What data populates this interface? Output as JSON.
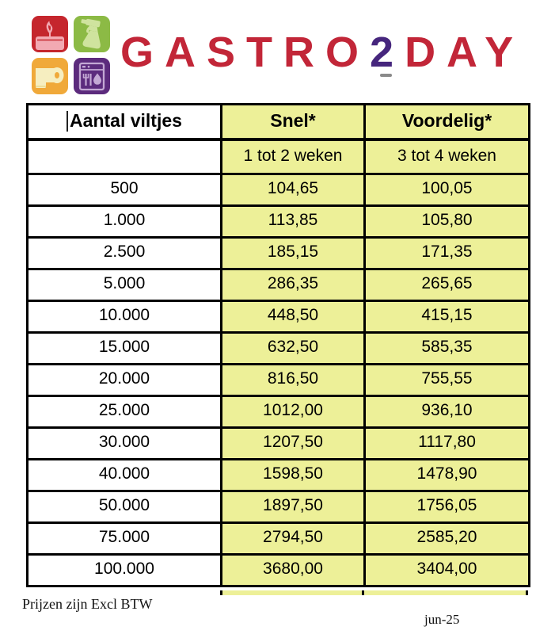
{
  "logo": {
    "brand": {
      "prefix": "GASTRO",
      "digit": "2",
      "suffix": "DAY"
    },
    "text_color": "#c22638",
    "digit_color": "#46267d",
    "tiles": [
      {
        "name": "candle-icon",
        "bg": "#c5262d",
        "fg": "#f2a9b2"
      },
      {
        "name": "spray-bottle-icon",
        "bg": "#8cba45",
        "fg": "#cfe39e"
      },
      {
        "name": "toilet-paper-icon",
        "bg": "#f0a93a",
        "fg": "#f6eec0"
      },
      {
        "name": "dishwasher-icon",
        "bg": "#5c2b7d",
        "fg": "#c3a8d4"
      }
    ]
  },
  "table": {
    "highlight_color": "#edf098",
    "columns": [
      {
        "header": "Aantal viltjes",
        "subheader": ""
      },
      {
        "header": "Snel*",
        "subheader": "1 tot 2 weken"
      },
      {
        "header": "Voordelig*",
        "subheader": "3 tot 4 weken"
      }
    ],
    "rows": [
      {
        "aantal": "500",
        "snel": "104,65",
        "voordelig": "100,05"
      },
      {
        "aantal": "1.000",
        "snel": "113,85",
        "voordelig": "105,80"
      },
      {
        "aantal": "2.500",
        "snel": "185,15",
        "voordelig": "171,35"
      },
      {
        "aantal": "5.000",
        "snel": "286,35",
        "voordelig": "265,65"
      },
      {
        "aantal": "10.000",
        "snel": "448,50",
        "voordelig": "415,15"
      },
      {
        "aantal": "15.000",
        "snel": "632,50",
        "voordelig": "585,35"
      },
      {
        "aantal": "20.000",
        "snel": "816,50",
        "voordelig": "755,55"
      },
      {
        "aantal": "25.000",
        "snel": "1012,00",
        "voordelig": "936,10"
      },
      {
        "aantal": "30.000",
        "snel": "1207,50",
        "voordelig": "1117,80"
      },
      {
        "aantal": "40.000",
        "snel": "1598,50",
        "voordelig": "1478,90"
      },
      {
        "aantal": "50.000",
        "snel": "1897,50",
        "voordelig": "1756,05"
      },
      {
        "aantal": "75.000",
        "snel": "2794,50",
        "voordelig": "2585,20"
      },
      {
        "aantal": "100.000",
        "snel": "3680,00",
        "voordelig": "3404,00"
      }
    ]
  },
  "footer": {
    "note": "Prijzen zijn Excl BTW",
    "date": "jun-25"
  }
}
